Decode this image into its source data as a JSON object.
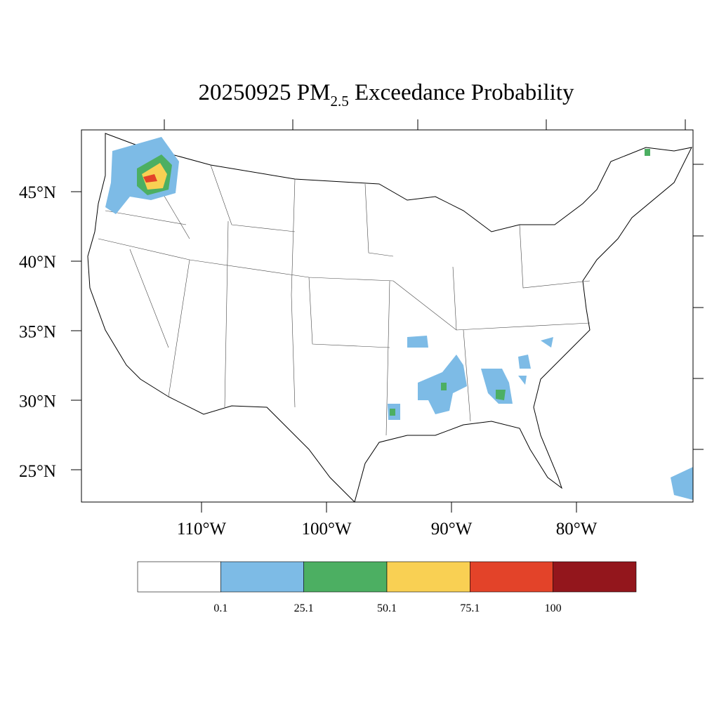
{
  "title": {
    "date": "20250925",
    "pollutant": "PM",
    "subscript": "2.5",
    "rest": " Exceedance Probability"
  },
  "lat_labels": [
    "45°N",
    "40°N",
    "35°N",
    "30°N",
    "25°N"
  ],
  "lon_labels": [
    "110°W",
    "100°W",
    "90°W",
    "80°W"
  ],
  "colorbar": {
    "colors": [
      "#ffffff",
      "#7dbbe6",
      "#4caf62",
      "#f9d053",
      "#e34329",
      "#93161c"
    ],
    "labels": [
      "0.1",
      "25.1",
      "50.1",
      "75.1",
      "100"
    ]
  }
}
